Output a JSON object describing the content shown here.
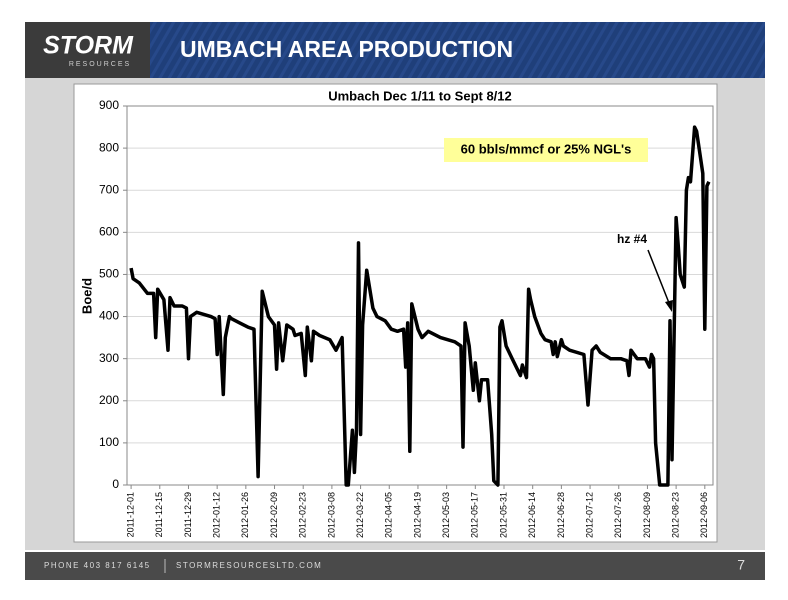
{
  "header": {
    "logo": "STORM",
    "logo_sub": "RESOURCES",
    "title": "UMBACH AREA PRODUCTION"
  },
  "chart_data": {
    "type": "line",
    "title": "Umbach Dec 1/11 to Sept 8/12",
    "y_label": "Boe/d",
    "annotations": [
      "60 bbls/mmcf or 25% NGL's",
      "hz #4"
    ],
    "x": [
      "2011-12-01",
      "2011-12-02",
      "2011-12-05",
      "2011-12-09",
      "2011-12-12",
      "2011-12-13",
      "2011-12-14",
      "2011-12-17",
      "2011-12-19",
      "2011-12-20",
      "2011-12-22",
      "2011-12-26",
      "2011-12-28",
      "2011-12-29",
      "2011-12-30",
      "2012-01-02",
      "2012-01-09",
      "2012-01-11",
      "2012-01-12",
      "2012-01-13",
      "2012-01-15",
      "2012-01-16",
      "2012-01-18",
      "2012-01-19",
      "2012-01-23",
      "2012-01-27",
      "2012-01-30",
      "2012-02-01",
      "2012-02-03",
      "2012-02-06",
      "2012-02-09",
      "2012-02-10",
      "2012-02-11",
      "2012-02-13",
      "2012-02-15",
      "2012-02-18",
      "2012-02-19",
      "2012-02-22",
      "2012-02-24",
      "2012-02-25",
      "2012-02-27",
      "2012-02-28",
      "2012-03-02",
      "2012-03-07",
      "2012-03-10",
      "2012-03-12",
      "2012-03-13",
      "2012-03-15",
      "2012-03-16",
      "2012-03-18",
      "2012-03-19",
      "2012-03-20",
      "2012-03-21",
      "2012-03-22",
      "2012-03-23",
      "2012-03-25",
      "2012-03-28",
      "2012-03-30",
      "2012-04-03",
      "2012-04-06",
      "2012-04-09",
      "2012-04-12",
      "2012-04-13",
      "2012-04-14",
      "2012-04-15",
      "2012-04-16",
      "2012-04-19",
      "2012-04-21",
      "2012-04-24",
      "2012-04-30",
      "2012-05-07",
      "2012-05-10",
      "2012-05-11",
      "2012-05-12",
      "2012-05-14",
      "2012-05-16",
      "2012-05-17",
      "2012-05-19",
      "2012-05-20",
      "2012-05-23",
      "2012-05-25",
      "2012-05-26",
      "2012-05-28",
      "2012-05-29",
      "2012-05-30",
      "2012-06-01",
      "2012-06-04",
      "2012-06-06",
      "2012-06-08",
      "2012-06-09",
      "2012-06-11",
      "2012-06-12",
      "2012-06-13",
      "2012-06-15",
      "2012-06-18",
      "2012-06-20",
      "2012-06-23",
      "2012-06-24",
      "2012-06-25",
      "2012-06-26",
      "2012-06-28",
      "2012-06-29",
      "2012-07-02",
      "2012-07-09",
      "2012-07-11",
      "2012-07-13",
      "2012-07-15",
      "2012-07-17",
      "2012-07-22",
      "2012-07-27",
      "2012-07-30",
      "2012-07-31",
      "2012-08-01",
      "2012-08-04",
      "2012-08-08",
      "2012-08-10",
      "2012-08-11",
      "2012-08-12",
      "2012-08-13",
      "2012-08-15",
      "2012-08-19",
      "2012-08-20",
      "2012-08-21",
      "2012-08-23",
      "2012-08-24",
      "2012-08-25",
      "2012-08-27",
      "2012-08-28",
      "2012-08-29",
      "2012-08-30",
      "2012-09-01",
      "2012-09-02",
      "2012-09-05",
      "2012-09-06",
      "2012-09-07",
      "2012-09-08"
    ],
    "series": [
      {
        "color": "#000000",
        "values": [
          515,
          490,
          480,
          455,
          455,
          350,
          465,
          440,
          320,
          445,
          425,
          425,
          420,
          300,
          400,
          410,
          400,
          395,
          310,
          400,
          215,
          350,
          400,
          395,
          385,
          375,
          370,
          20,
          460,
          400,
          380,
          275,
          385,
          295,
          380,
          370,
          355,
          360,
          260,
          375,
          295,
          365,
          355,
          345,
          320,
          340,
          350,
          0,
          0,
          130,
          30,
          130,
          575,
          120,
          380,
          510,
          420,
          400,
          390,
          370,
          365,
          370,
          280,
          385,
          80,
          430,
          370,
          350,
          365,
          350,
          340,
          330,
          90,
          385,
          330,
          225,
          290,
          200,
          250,
          250,
          120,
          10,
          0,
          375,
          390,
          330,
          300,
          280,
          260,
          285,
          255,
          465,
          440,
          400,
          360,
          345,
          340,
          310,
          340,
          305,
          345,
          330,
          320,
          310,
          190,
          320,
          330,
          315,
          300,
          300,
          295,
          260,
          320,
          300,
          300,
          280,
          310,
          300,
          100,
          0,
          0,
          390,
          60,
          635,
          570,
          500,
          470,
          700,
          730,
          720,
          850,
          840,
          740,
          370,
          710,
          720
        ]
      }
    ],
    "xlim": [
      "2011-11-29",
      "2012-09-10"
    ],
    "xticks": [
      "2011-12-01",
      "2011-12-15",
      "2011-12-29",
      "2012-01-12",
      "2012-01-26",
      "2012-02-09",
      "2012-02-23",
      "2012-03-08",
      "2012-03-22",
      "2012-04-05",
      "2012-04-19",
      "2012-05-03",
      "2012-05-17",
      "2012-05-31",
      "2012-06-14",
      "2012-06-28",
      "2012-07-12",
      "2012-07-26",
      "2012-08-09",
      "2012-08-23",
      "2012-09-06"
    ],
    "ylim": [
      0,
      900
    ],
    "yticks": [
      0,
      100,
      200,
      300,
      400,
      500,
      600,
      700,
      800,
      900
    ],
    "grid": true
  },
  "footer": {
    "phone": "PHONE 403 817 6145",
    "site": "STORMRESOURCESLTD.COM",
    "page": "7"
  }
}
